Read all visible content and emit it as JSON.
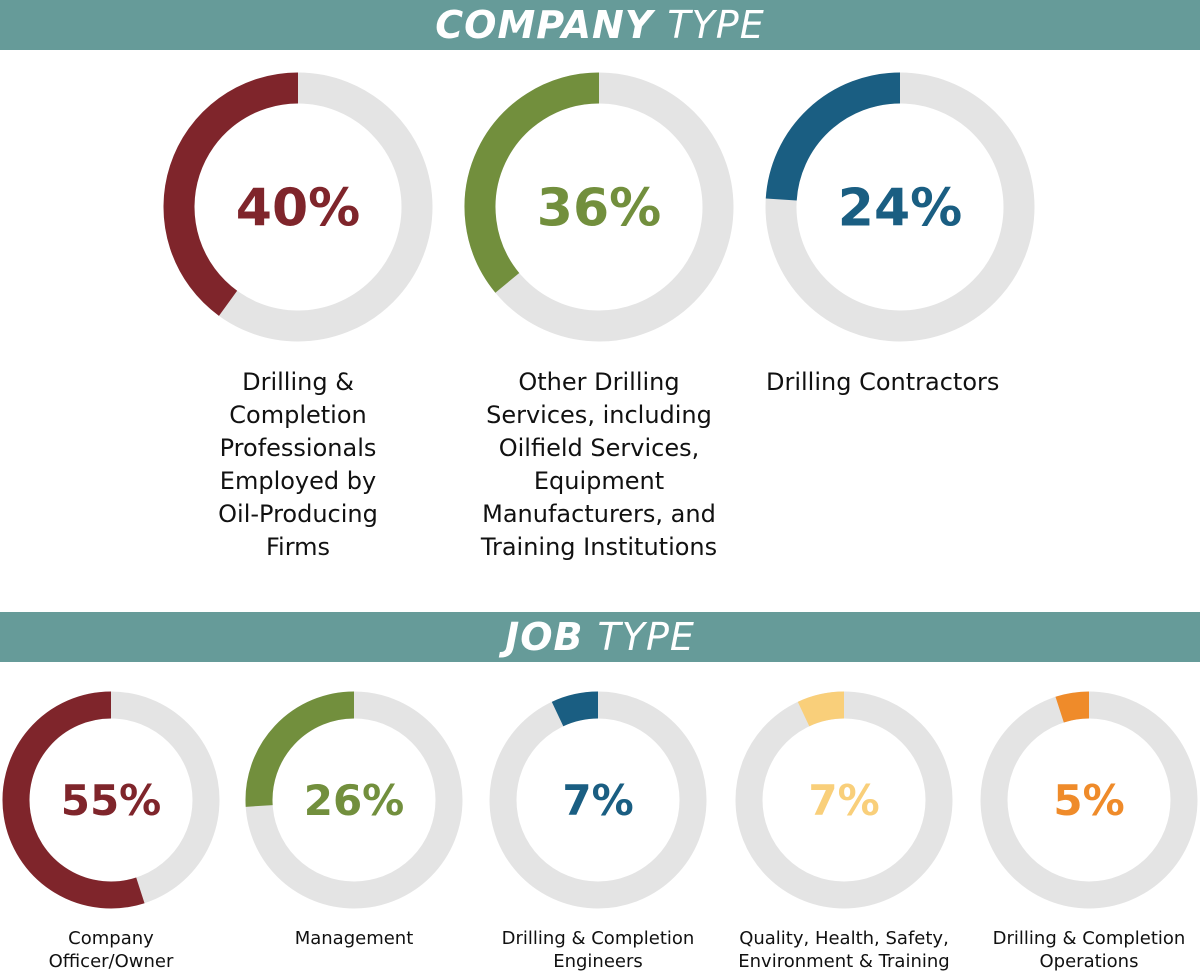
{
  "sections": {
    "company": {
      "title_bold": "COMPANY",
      "title_light": "TYPE"
    },
    "job": {
      "title_bold": "JOB",
      "title_light": "TYPE"
    }
  },
  "colors": {
    "track": "#e4e4e4",
    "maroon": "#7f252b",
    "green": "#728f3d",
    "blue": "#1a5e82",
    "yellow": "#f9cf7a",
    "orange": "#ef8b2a",
    "banner": "#669b99"
  },
  "chart_data": [
    {
      "type": "pie",
      "title": "COMPANY TYPE",
      "categories": [
        "Drilling & Completion Professionals Employed by Oil-Producing Firms",
        "Other Drilling Services, including Oilfield Services, Equipment Manufacturers, and Training Institutions",
        "Drilling Contractors"
      ],
      "labels": [
        "Drilling &\nCompletion\nProfessionals\nEmployed by\nOil-Producing\nFirms",
        "Other Drilling\nServices, including\nOilfield Services,\nEquipment\nManufacturers, and\nTraining Institutions",
        "Drilling Contractors"
      ],
      "values": [
        40,
        36,
        24
      ],
      "value_labels": [
        "40%",
        "36%",
        "24%"
      ],
      "colors": [
        "#7f252b",
        "#728f3d",
        "#1a5e82"
      ]
    },
    {
      "type": "pie",
      "title": "JOB TYPE",
      "categories": [
        "Company Officer/Owner",
        "Management",
        "Drilling & Completion Engineers",
        "Quality, Health, Safety, Environment & Training",
        "Drilling & Completion Operations"
      ],
      "labels": [
        "Company\nOfficer/Owner",
        "Management",
        "Drilling & Completion\nEngineers",
        "Quality, Health, Safety,\nEnvironment & Training",
        "Drilling & Completion\nOperations"
      ],
      "values": [
        55,
        26,
        7,
        7,
        5
      ],
      "value_labels": [
        "55%",
        "26%",
        "7%",
        "7%",
        "5%"
      ],
      "colors": [
        "#7f252b",
        "#728f3d",
        "#1a5e82",
        "#f9cf7a",
        "#ef8b2a"
      ]
    }
  ]
}
